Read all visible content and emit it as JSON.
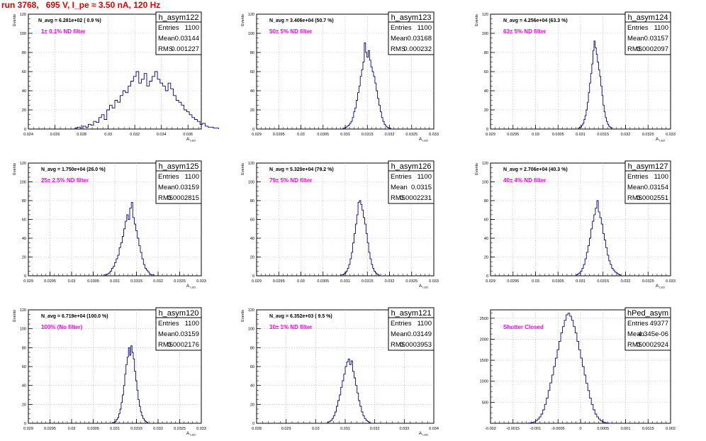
{
  "page_title": "run 3768,   695 V, I_pe ≈ 3.50 nA, 120 Hz",
  "colors": {
    "title": "#e00000",
    "annotation": "#ff00ff",
    "histogram": "#000080",
    "grid": "#bdbdbd"
  },
  "chart_data": [
    {
      "type": "bar",
      "hist_name": "h_asym122",
      "stats": {
        "entries_label": "Entries",
        "entries": "1100",
        "mean_label": "Mean",
        "mean": "0.03144",
        "rms_label": "RMS",
        "rms": "0.001227"
      },
      "navg": "N_avg = 6.281e+02 ( 0.9 %)",
      "filter_label": "1± 0.1% ND filter",
      "ylabel": "Events",
      "xlabel": "A",
      "xlabel_sub": "LED",
      "xlim": [
        0.024,
        0.037
      ],
      "ylim": [
        0,
        120
      ],
      "xticks": [
        "0.024",
        "0.026",
        "0.028",
        "0.03",
        "0.032",
        "0.034",
        "0.036"
      ],
      "xtick_vals": [
        0.024,
        0.026,
        0.028,
        0.03,
        0.032,
        0.034,
        0.036
      ],
      "yticks": [
        "0",
        "20",
        "40",
        "60",
        "80",
        "100",
        "120"
      ],
      "bins": {
        "start": 0.0275,
        "width": 0.0002,
        "counts": [
          1,
          2,
          0,
          3,
          2,
          5,
          4,
          8,
          7,
          12,
          15,
          10,
          20,
          25,
          22,
          30,
          28,
          35,
          40,
          38,
          45,
          50,
          55,
          60,
          48,
          52,
          58,
          45,
          50,
          55,
          60,
          52,
          48,
          45,
          40,
          48,
          42,
          35,
          30,
          28,
          25,
          20,
          18,
          15,
          12,
          10,
          8,
          5,
          6,
          3,
          2,
          2,
          1,
          1
        ]
      }
    },
    {
      "type": "bar",
      "hist_name": "h_asym123",
      "stats": {
        "entries_label": "Entries",
        "entries": "1100",
        "mean_label": "Mean",
        "mean": "0.03168",
        "rms_label": "RMS",
        "rms": "0.000232"
      },
      "navg": "N_avg = 3.406e+04 (50.7 %)",
      "filter_label": "50± 5% ND filter",
      "ylabel": "Events",
      "xlabel": "A",
      "xlabel_sub": "LED",
      "xlim": [
        0.029,
        0.033
      ],
      "ylim": [
        0,
        120
      ],
      "xticks": [
        "0.029",
        "0.0295",
        "0.03",
        "0.0305",
        "0.031",
        "0.0315",
        "0.032",
        "0.0325",
        "0.033"
      ],
      "xtick_vals": [
        0.029,
        0.0295,
        0.03,
        0.0305,
        0.031,
        0.0315,
        0.032,
        0.0325,
        0.033
      ],
      "yticks": [
        "0",
        "20",
        "40",
        "60",
        "80",
        "100",
        "120"
      ],
      "bins": {
        "start": 0.03095,
        "width": 3e-05,
        "counts": [
          1,
          1,
          2,
          3,
          4,
          6,
          8,
          12,
          18,
          22,
          30,
          38,
          45,
          55,
          62,
          70,
          90,
          80,
          75,
          82,
          72,
          65,
          60,
          55,
          48,
          40,
          32,
          25,
          18,
          12,
          8,
          5,
          3,
          2,
          1,
          1
        ]
      }
    },
    {
      "type": "bar",
      "hist_name": "h_asym124",
      "stats": {
        "entries_label": "Entries",
        "entries": "1100",
        "mean_label": "Mean",
        "mean": "0.03157",
        "rms_label": "RMS",
        "rms": "0.0002097"
      },
      "navg": "N_avg = 4.256e+04 (63.3 %)",
      "filter_label": "63± 5% ND filter",
      "ylabel": "Events",
      "xlabel": "A",
      "xlabel_sub": "LED",
      "xlim": [
        0.029,
        0.033
      ],
      "ylim": [
        0,
        120
      ],
      "xticks": [
        "0.029",
        "0.0295",
        "0.03",
        "0.0305",
        "0.031",
        "0.0315",
        "0.032",
        "0.0325",
        "0.033"
      ],
      "xtick_vals": [
        0.029,
        0.0295,
        0.03,
        0.0305,
        0.031,
        0.0315,
        0.032,
        0.0325,
        0.033
      ],
      "yticks": [
        "0",
        "20",
        "40",
        "60",
        "80",
        "100",
        "120"
      ],
      "bins": {
        "start": 0.03095,
        "width": 2.5e-05,
        "counts": [
          1,
          2,
          2,
          4,
          6,
          10,
          14,
          20,
          28,
          38,
          48,
          58,
          68,
          82,
          92,
          85,
          78,
          70,
          62,
          55,
          45,
          35,
          25,
          18,
          12,
          8,
          5,
          3,
          2,
          1
        ]
      }
    },
    {
      "type": "bar",
      "hist_name": "h_asym125",
      "stats": {
        "entries_label": "Entries",
        "entries": "1100",
        "mean_label": "Mean",
        "mean": "0.03159",
        "rms_label": "RMS",
        "rms": "0.0002815"
      },
      "navg": "N_avg = 1.750e+04 (26.0 %)",
      "filter_label": "25± 2.5% ND filter",
      "ylabel": "Events",
      "xlabel": "A",
      "xlabel_sub": "LED",
      "xlim": [
        0.029,
        0.033
      ],
      "ylim": [
        0,
        120
      ],
      "xticks": [
        "0.029",
        "0.0295",
        "0.03",
        "0.0305",
        "0.031",
        "0.0315",
        "0.032",
        "0.0325",
        "0.033"
      ],
      "xtick_vals": [
        0.029,
        0.0295,
        0.03,
        0.0305,
        0.031,
        0.0315,
        0.032,
        0.0325,
        0.033
      ],
      "yticks": [
        "0",
        "20",
        "40",
        "60",
        "80",
        "100",
        "120"
      ],
      "bins": {
        "start": 0.03075,
        "width": 3.5e-05,
        "counts": [
          1,
          1,
          2,
          3,
          5,
          8,
          10,
          14,
          18,
          22,
          30,
          35,
          42,
          50,
          58,
          65,
          60,
          72,
          78,
          62,
          55,
          48,
          40,
          32,
          25,
          18,
          12,
          8,
          6,
          4,
          2,
          1,
          1
        ]
      }
    },
    {
      "type": "bar",
      "hist_name": "h_asym126",
      "stats": {
        "entries_label": "Entries",
        "entries": "1100",
        "mean_label": "Mean",
        "mean": "0.0315",
        "rms_label": "RMS",
        "rms": "0.0002231"
      },
      "navg": "N_avg = 5.320e+04 (79.2 %)",
      "filter_label": "79± 5% ND filter",
      "ylabel": "Events",
      "xlabel": "A",
      "xlabel_sub": "LED",
      "xlim": [
        0.029,
        0.033
      ],
      "ylim": [
        0,
        120
      ],
      "xticks": [
        "0.029",
        "0.0295",
        "0.03",
        "0.0305",
        "0.031",
        "0.0315",
        "0.032",
        "0.0325",
        "0.033"
      ],
      "xtick_vals": [
        0.029,
        0.0295,
        0.03,
        0.0305,
        0.031,
        0.0315,
        0.032,
        0.0325,
        0.033
      ],
      "yticks": [
        "0",
        "20",
        "40",
        "60",
        "80",
        "100",
        "120"
      ],
      "bins": {
        "start": 0.0309,
        "width": 3e-05,
        "counts": [
          1,
          1,
          2,
          3,
          5,
          8,
          12,
          18,
          25,
          35,
          45,
          55,
          65,
          78,
          80,
          76,
          70,
          62,
          55,
          45,
          35,
          25,
          18,
          12,
          8,
          5,
          3,
          2,
          1
        ]
      }
    },
    {
      "type": "bar",
      "hist_name": "h_asym127",
      "stats": {
        "entries_label": "Entries",
        "entries": "1100",
        "mean_label": "Mean",
        "mean": "0.03154",
        "rms_label": "RMS",
        "rms": "0.0002551"
      },
      "navg": "N_avg = 2.706e+04 (40.3 %)",
      "filter_label": "40± 4% ND filter",
      "ylabel": "Events",
      "xlabel": "A",
      "xlabel_sub": "LED",
      "xlim": [
        0.029,
        0.033
      ],
      "ylim": [
        0,
        120
      ],
      "xticks": [
        "0.029",
        "0.0295",
        "0.03",
        "0.0305",
        "0.031",
        "0.0315",
        "0.032",
        "0.0325",
        "0.033"
      ],
      "xtick_vals": [
        0.029,
        0.0295,
        0.03,
        0.0305,
        0.031,
        0.0315,
        0.032,
        0.0325,
        0.033
      ],
      "yticks": [
        "0",
        "20",
        "40",
        "60",
        "80",
        "100",
        "120"
      ],
      "bins": {
        "start": 0.0309,
        "width": 3.3e-05,
        "counts": [
          1,
          2,
          3,
          5,
          8,
          12,
          18,
          25,
          32,
          40,
          50,
          58,
          65,
          72,
          80,
          68,
          62,
          55,
          45,
          38,
          30,
          22,
          16,
          12,
          8,
          6,
          4,
          3,
          2,
          1
        ]
      }
    },
    {
      "type": "bar",
      "hist_name": "h_asym120",
      "stats": {
        "entries_label": "Entries",
        "entries": "1100",
        "mean_label": "Mean",
        "mean": "0.03159",
        "rms_label": "RMS",
        "rms": "0.0002176"
      },
      "navg": "N_avg = 6.719e+04 (100.0 %)",
      "filter_label": "100% (No filter)",
      "ylabel": "Events",
      "xlabel": "A",
      "xlabel_sub": "LED",
      "xlim": [
        0.029,
        0.033
      ],
      "ylim": [
        0,
        120
      ],
      "xticks": [
        "0.029",
        "0.0295",
        "0.03",
        "0.0305",
        "0.031",
        "0.0315",
        "0.032",
        "0.0325",
        "0.033"
      ],
      "xtick_vals": [
        0.029,
        0.0295,
        0.03,
        0.0305,
        0.031,
        0.0315,
        0.032,
        0.0325,
        0.033
      ],
      "yticks": [
        "0",
        "20",
        "40",
        "60",
        "80",
        "100",
        "120"
      ],
      "bins": {
        "start": 0.03095,
        "width": 2.8e-05,
        "counts": [
          1,
          1,
          2,
          4,
          6,
          10,
          15,
          22,
          30,
          40,
          52,
          62,
          70,
          80,
          72,
          82,
          75,
          68,
          55,
          45,
          35,
          25,
          18,
          12,
          8,
          5,
          3,
          2,
          1
        ]
      }
    },
    {
      "type": "bar",
      "hist_name": "h_asym121",
      "stats": {
        "entries_label": "Entries",
        "entries": "1100",
        "mean_label": "Mean",
        "mean": "0.03149",
        "rms_label": "RMS",
        "rms": "0.0003953"
      },
      "navg": "N_avg = 6.352e+03 ( 9.5 %)",
      "filter_label": "10± 1% ND filter",
      "ylabel": "Events",
      "xlabel": "A",
      "xlabel_sub": "LED",
      "xlim": [
        0.028,
        0.034
      ],
      "ylim": [
        0,
        120
      ],
      "xticks": [
        "0.028",
        "0.029",
        "0.03",
        "0.031",
        "0.032",
        "0.033",
        "0.034"
      ],
      "xtick_vals": [
        0.028,
        0.029,
        0.03,
        0.031,
        0.032,
        0.033,
        0.034
      ],
      "yticks": [
        "0",
        "20",
        "40",
        "60",
        "80",
        "100",
        "120"
      ],
      "bins": {
        "start": 0.0304,
        "width": 5e-05,
        "counts": [
          1,
          2,
          3,
          5,
          8,
          12,
          18,
          24,
          30,
          38,
          45,
          52,
          60,
          65,
          68,
          62,
          66,
          55,
          48,
          40,
          32,
          24,
          18,
          12,
          8,
          5,
          3,
          2,
          1
        ]
      }
    },
    {
      "type": "bar",
      "hist_name": "hPed_asym",
      "stats": {
        "entries_label": "Entries",
        "entries": "49377",
        "mean_label": "Mean",
        "mean": "4.345e-06",
        "rms_label": "RMS",
        "rms": "0.0002924"
      },
      "navg": "",
      "filter_label": "Shutter Closed",
      "ylabel": "",
      "xlabel": "",
      "xlabel_sub": "",
      "xlim": [
        -0.002,
        0.002
      ],
      "ylim": [
        0,
        2700
      ],
      "xticks": [
        "-0.002",
        "-0.0015",
        "-0.001",
        "-0.0005",
        "0",
        "0.0005",
        "0.001",
        "0.0015",
        "0.002"
      ],
      "xtick_vals": [
        -0.002,
        -0.0015,
        -0.001,
        -0.0005,
        0,
        0.0005,
        0.001,
        0.0015,
        0.002
      ],
      "yticks": [
        "500",
        "1000",
        "1500",
        "2000",
        "2500"
      ],
      "ytick_vals": [
        500,
        1000,
        1500,
        2000,
        2500
      ],
      "bins": {
        "start": -0.0012,
        "width": 4e-05,
        "counts": [
          2,
          5,
          10,
          20,
          35,
          60,
          100,
          150,
          220,
          320,
          450,
          600,
          780,
          960,
          1150,
          1350,
          1550,
          1750,
          1950,
          2150,
          2300,
          2450,
          2580,
          2620,
          2550,
          2450,
          2300,
          2150,
          1950,
          1750,
          1550,
          1350,
          1150,
          950,
          780,
          600,
          450,
          320,
          220,
          150,
          100,
          60,
          35,
          20,
          10,
          5,
          2
        ]
      }
    }
  ]
}
